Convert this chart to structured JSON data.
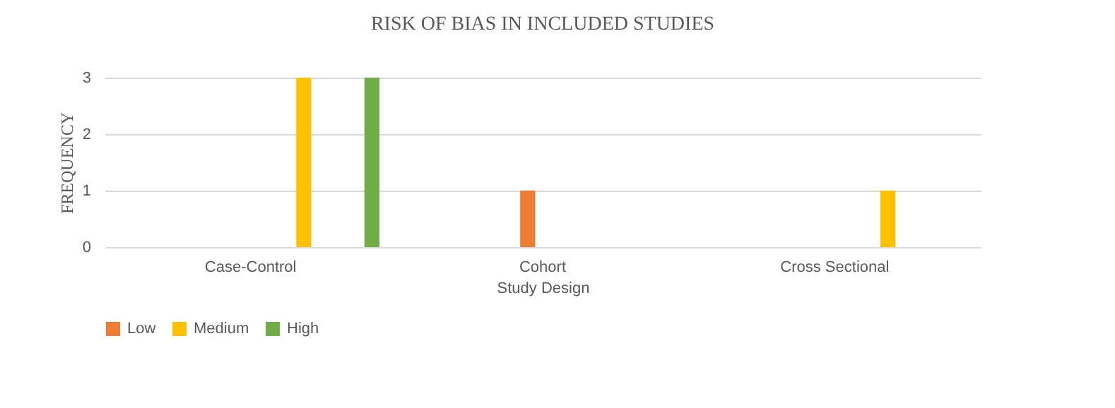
{
  "chart_data": {
    "type": "bar",
    "title": "RISK OF BIAS IN INCLUDED STUDIES",
    "xlabel": "Study Design",
    "ylabel": "FREQUENCY",
    "categories": [
      "Case-Control",
      "Cohort",
      "Cross Sectional"
    ],
    "series": [
      {
        "name": "Low",
        "color": "#ed7d31",
        "values": [
          0,
          1,
          0
        ]
      },
      {
        "name": "Medium",
        "color": "#ffc000",
        "values": [
          3,
          0,
          1
        ]
      },
      {
        "name": "High",
        "color": "#70ad47",
        "values": [
          3,
          0,
          0
        ]
      }
    ],
    "ylim": [
      0,
      3
    ],
    "yticks": [
      0,
      1,
      2,
      3
    ],
    "grid": "y",
    "legend": "bottom"
  }
}
